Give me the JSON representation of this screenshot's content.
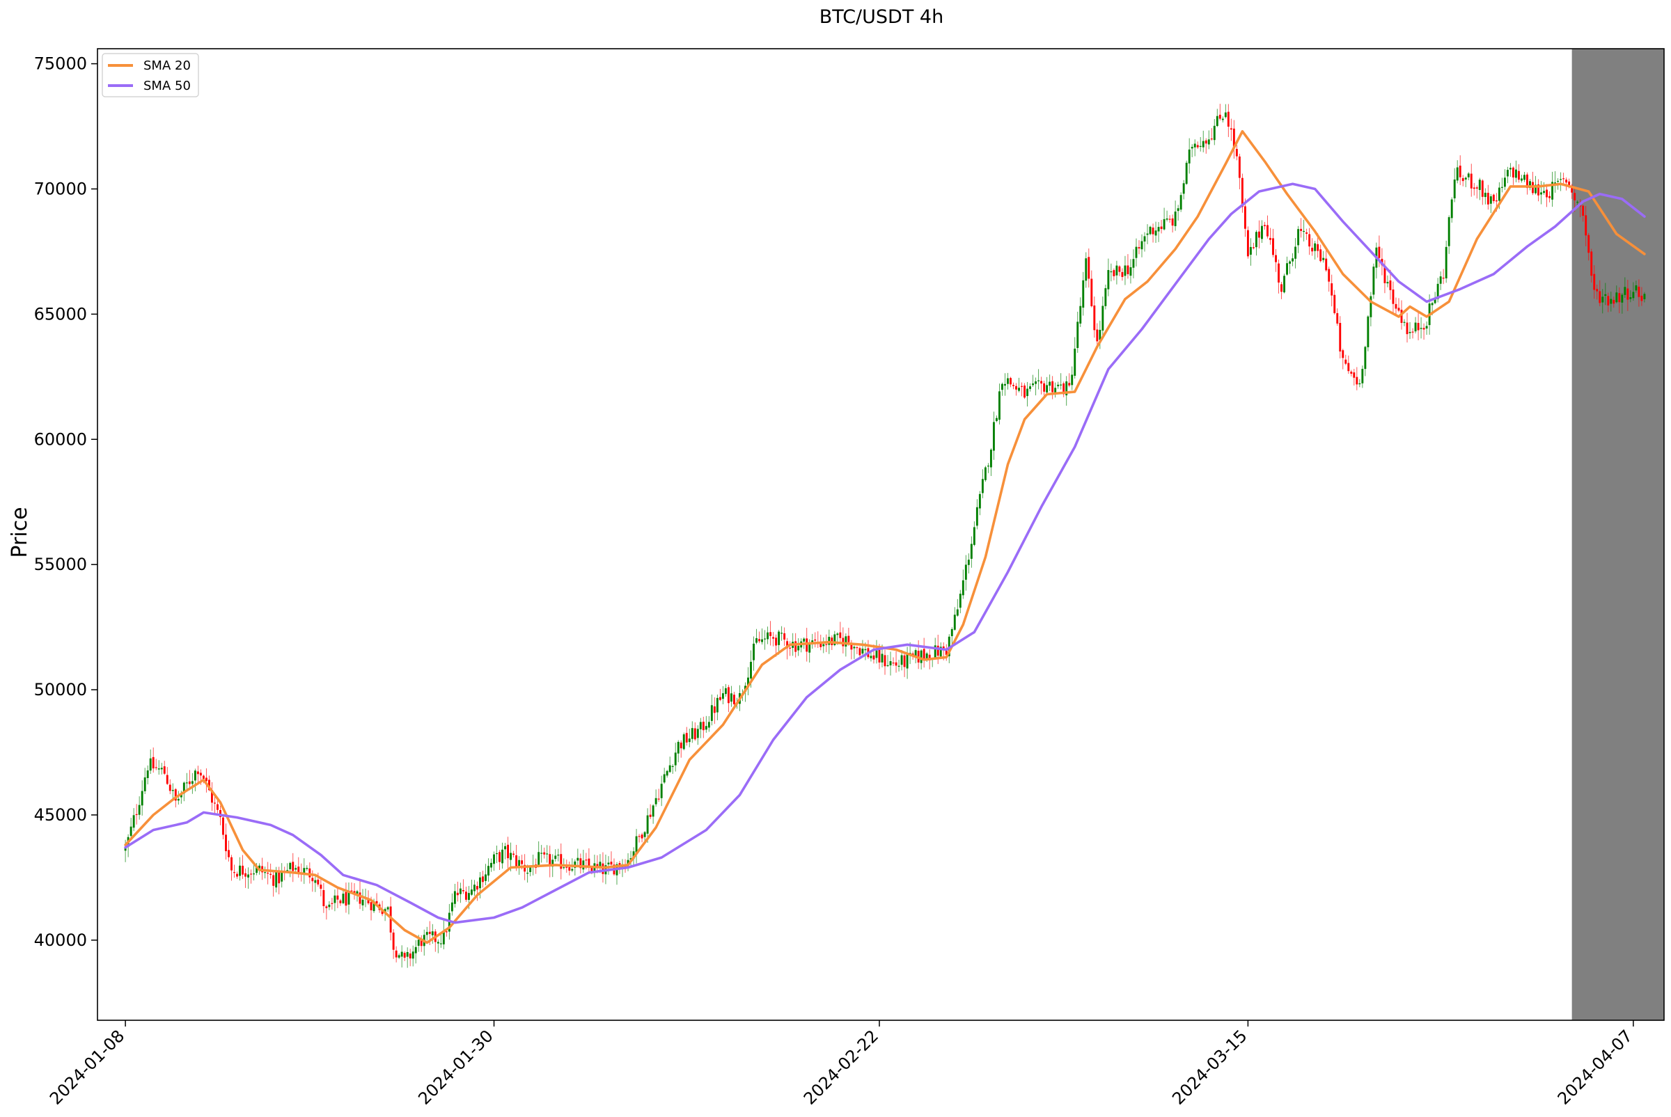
{
  "chart_data": {
    "type": "candlestick",
    "title": "BTC/USDT 4h",
    "ylabel": "Price",
    "xlabel": "",
    "ylim": [
      36800,
      75600
    ],
    "yticks": [
      40000,
      45000,
      50000,
      55000,
      60000,
      65000,
      70000,
      75000
    ],
    "xticks": [
      "2024-01-08",
      "2024-01-30",
      "2024-02-22",
      "2024-03-15",
      "2024-04-07"
    ],
    "x_range": {
      "start": "2024-01-06T08:00",
      "end": "2024-04-08T20:00"
    },
    "shaded_region": {
      "start": "2024-04-03T08:00",
      "end": "2024-04-08T20:00",
      "color": "#808080"
    },
    "legend": {
      "placement": "top-left"
    },
    "up_color": "#008000",
    "down_color": "#ff0000",
    "sma_anchors": [
      {
        "name": "SMA 20",
        "color": "#f7903a",
        "points": [
          [
            "2024-01-08T00:00",
            43800
          ],
          [
            "2024-01-09T16:00",
            45000
          ],
          [
            "2024-01-11T00:00",
            45700
          ],
          [
            "2024-01-12T16:00",
            46400
          ],
          [
            "2024-01-13T16:00",
            45500
          ],
          [
            "2024-01-15T00:00",
            43600
          ],
          [
            "2024-01-16T00:00",
            42800
          ],
          [
            "2024-01-18T00:00",
            42700
          ],
          [
            "2024-01-19T08:00",
            42600
          ],
          [
            "2024-01-20T16:00",
            42100
          ],
          [
            "2024-01-22T16:00",
            41600
          ],
          [
            "2024-01-24T16:00",
            40400
          ],
          [
            "2024-01-26T00:00",
            39900
          ],
          [
            "2024-01-27T08:00",
            40500
          ],
          [
            "2024-01-29T00:00",
            41800
          ],
          [
            "2024-01-31T00:00",
            42900
          ],
          [
            "2024-02-02T16:00",
            43000
          ],
          [
            "2024-02-05T16:00",
            42900
          ],
          [
            "2024-02-07T00:00",
            43000
          ],
          [
            "2024-02-08T16:00",
            44500
          ],
          [
            "2024-02-10T16:00",
            47200
          ],
          [
            "2024-02-12T16:00",
            48600
          ],
          [
            "2024-02-15T00:00",
            51000
          ],
          [
            "2024-02-16T16:00",
            51800
          ],
          [
            "2024-02-19T00:00",
            51900
          ],
          [
            "2024-02-21T00:00",
            51800
          ],
          [
            "2024-02-23T00:00",
            51600
          ],
          [
            "2024-02-24T16:00",
            51200
          ],
          [
            "2024-02-26T00:00",
            51300
          ],
          [
            "2024-02-27T00:00",
            52600
          ],
          [
            "2024-02-28T08:00",
            55300
          ],
          [
            "2024-02-29T16:00",
            59000
          ],
          [
            "2024-03-01T16:00",
            60800
          ],
          [
            "2024-03-03T00:00",
            61800
          ],
          [
            "2024-03-04T16:00",
            61900
          ],
          [
            "2024-03-06T00:00",
            63700
          ],
          [
            "2024-03-07T16:00",
            65600
          ],
          [
            "2024-03-09T00:00",
            66300
          ],
          [
            "2024-03-10T16:00",
            67600
          ],
          [
            "2024-03-12T00:00",
            68900
          ],
          [
            "2024-03-13T16:00",
            71000
          ],
          [
            "2024-03-14T16:00",
            72300
          ],
          [
            "2024-03-16T00:00",
            71100
          ],
          [
            "2024-03-17T08:00",
            69800
          ],
          [
            "2024-03-19T00:00",
            68300
          ],
          [
            "2024-03-20T16:00",
            66600
          ],
          [
            "2024-03-22T08:00",
            65500
          ],
          [
            "2024-03-24T00:00",
            64900
          ],
          [
            "2024-03-24T16:00",
            65300
          ],
          [
            "2024-03-25T16:00",
            64900
          ],
          [
            "2024-03-27T00:00",
            65500
          ],
          [
            "2024-03-28T16:00",
            68000
          ],
          [
            "2024-03-30T16:00",
            70100
          ],
          [
            "2024-04-01T08:00",
            70100
          ],
          [
            "2024-04-02T16:00",
            70200
          ],
          [
            "2024-04-04T08:00",
            69900
          ],
          [
            "2024-04-06T00:00",
            68200
          ],
          [
            "2024-04-07T16:00",
            67400
          ]
        ]
      },
      {
        "name": "SMA 50",
        "color": "#9a6cf7",
        "points": [
          [
            "2024-01-08T00:00",
            43700
          ],
          [
            "2024-01-09T16:00",
            44400
          ],
          [
            "2024-01-11T16:00",
            44700
          ],
          [
            "2024-01-12T16:00",
            45100
          ],
          [
            "2024-01-14T16:00",
            44900
          ],
          [
            "2024-01-16T16:00",
            44600
          ],
          [
            "2024-01-18T00:00",
            44200
          ],
          [
            "2024-01-19T16:00",
            43400
          ],
          [
            "2024-01-21T00:00",
            42600
          ],
          [
            "2024-01-23T00:00",
            42200
          ],
          [
            "2024-01-25T00:00",
            41500
          ],
          [
            "2024-01-26T16:00",
            40900
          ],
          [
            "2024-01-27T16:00",
            40700
          ],
          [
            "2024-01-30T00:00",
            40900
          ],
          [
            "2024-01-31T16:00",
            41300
          ],
          [
            "2024-02-02T16:00",
            42000
          ],
          [
            "2024-02-04T16:00",
            42700
          ],
          [
            "2024-02-07T00:00",
            42900
          ],
          [
            "2024-02-09T00:00",
            43300
          ],
          [
            "2024-02-11T16:00",
            44400
          ],
          [
            "2024-02-13T16:00",
            45800
          ],
          [
            "2024-02-15T16:00",
            48000
          ],
          [
            "2024-02-17T16:00",
            49700
          ],
          [
            "2024-02-19T16:00",
            50800
          ],
          [
            "2024-02-21T16:00",
            51600
          ],
          [
            "2024-02-23T16:00",
            51800
          ],
          [
            "2024-02-26T00:00",
            51600
          ],
          [
            "2024-02-27T16:00",
            52300
          ],
          [
            "2024-02-29T16:00",
            54700
          ],
          [
            "2024-03-02T16:00",
            57300
          ],
          [
            "2024-03-04T16:00",
            59700
          ],
          [
            "2024-03-06T16:00",
            62800
          ],
          [
            "2024-03-08T16:00",
            64400
          ],
          [
            "2024-03-10T16:00",
            66200
          ],
          [
            "2024-03-12T16:00",
            68000
          ],
          [
            "2024-03-14T00:00",
            69000
          ],
          [
            "2024-03-15T16:00",
            69900
          ],
          [
            "2024-03-17T16:00",
            70200
          ],
          [
            "2024-03-19T00:00",
            70000
          ],
          [
            "2024-03-20T16:00",
            68700
          ],
          [
            "2024-03-22T08:00",
            67500
          ],
          [
            "2024-03-24T00:00",
            66300
          ],
          [
            "2024-03-25T16:00",
            65500
          ],
          [
            "2024-03-27T16:00",
            66000
          ],
          [
            "2024-03-29T16:00",
            66600
          ],
          [
            "2024-03-31T16:00",
            67700
          ],
          [
            "2024-04-02T08:00",
            68500
          ],
          [
            "2024-04-04T00:00",
            69500
          ],
          [
            "2024-04-05T00:00",
            69800
          ],
          [
            "2024-04-06T08:00",
            69600
          ],
          [
            "2024-04-07T16:00",
            68900
          ]
        ]
      }
    ],
    "close_anchors": [
      [
        "2024-01-08T00:00",
        43600
      ],
      [
        "2024-01-08T16:00",
        45200
      ],
      [
        "2024-01-09T08:00",
        47000
      ],
      [
        "2024-01-10T08:00",
        46700
      ],
      [
        "2024-01-11T00:00",
        45500
      ],
      [
        "2024-01-11T16:00",
        46200
      ],
      [
        "2024-01-12T08:00",
        46900
      ],
      [
        "2024-01-12T16:00",
        46500
      ],
      [
        "2024-01-13T16:00",
        44800
      ],
      [
        "2024-01-14T08:00",
        42800
      ],
      [
        "2024-01-16T00:00",
        42800
      ],
      [
        "2024-01-17T00:00",
        42400
      ],
      [
        "2024-01-18T00:00",
        42900
      ],
      [
        "2024-01-19T08:00",
        42600
      ],
      [
        "2024-01-20T00:00",
        41100
      ],
      [
        "2024-01-20T16:00",
        41600
      ],
      [
        "2024-01-22T00:00",
        41700
      ],
      [
        "2024-01-23T16:00",
        41200
      ],
      [
        "2024-01-24T00:00",
        39800
      ],
      [
        "2024-01-24T16:00",
        39100
      ],
      [
        "2024-01-25T16:00",
        40000
      ],
      [
        "2024-01-27T00:00",
        40100
      ],
      [
        "2024-01-27T16:00",
        41800
      ],
      [
        "2024-01-28T16:00",
        42000
      ],
      [
        "2024-01-30T00:00",
        43200
      ],
      [
        "2024-01-30T16:00",
        43500
      ],
      [
        "2024-02-01T00:00",
        42800
      ],
      [
        "2024-02-01T16:00",
        43200
      ],
      [
        "2024-02-04T00:00",
        43000
      ],
      [
        "2024-02-05T16:00",
        42800
      ],
      [
        "2024-02-07T00:00",
        43200
      ],
      [
        "2024-02-08T00:00",
        44600
      ],
      [
        "2024-02-09T00:00",
        46200
      ],
      [
        "2024-02-10T00:00",
        47800
      ],
      [
        "2024-02-11T08:00",
        48400
      ],
      [
        "2024-02-12T16:00",
        49800
      ],
      [
        "2024-02-13T16:00",
        49700
      ],
      [
        "2024-02-14T16:00",
        51900
      ],
      [
        "2024-02-15T16:00",
        52100
      ],
      [
        "2024-02-17T00:00",
        51800
      ],
      [
        "2024-02-18T16:00",
        51900
      ],
      [
        "2024-02-20T00:00",
        52000
      ],
      [
        "2024-02-21T16:00",
        51300
      ],
      [
        "2024-02-23T00:00",
        51000
      ],
      [
        "2024-02-24T16:00",
        51400
      ],
      [
        "2024-02-26T00:00",
        51600
      ],
      [
        "2024-02-26T16:00",
        53200
      ],
      [
        "2024-02-27T16:00",
        56500
      ],
      [
        "2024-02-28T16:00",
        59800
      ],
      [
        "2024-02-29T08:00",
        62500
      ],
      [
        "2024-03-01T16:00",
        61800
      ],
      [
        "2024-03-03T00:00",
        62200
      ],
      [
        "2024-03-04T08:00",
        62000
      ],
      [
        "2024-03-05T08:00",
        67000
      ],
      [
        "2024-03-06T00:00",
        63800
      ],
      [
        "2024-03-06T16:00",
        66500
      ],
      [
        "2024-03-08T00:00",
        66900
      ],
      [
        "2024-03-09T00:00",
        68300
      ],
      [
        "2024-03-10T16:00",
        68800
      ],
      [
        "2024-03-11T16:00",
        71800
      ],
      [
        "2024-03-12T16:00",
        72100
      ],
      [
        "2024-03-13T16:00",
        73200
      ],
      [
        "2024-03-14T08:00",
        71200
      ],
      [
        "2024-03-15T00:00",
        67200
      ],
      [
        "2024-03-16T00:00",
        68800
      ],
      [
        "2024-03-17T00:00",
        66000
      ],
      [
        "2024-03-18T00:00",
        68300
      ],
      [
        "2024-03-19T16:00",
        67000
      ],
      [
        "2024-03-20T16:00",
        63000
      ],
      [
        "2024-03-21T16:00",
        62200
      ],
      [
        "2024-03-22T16:00",
        67500
      ],
      [
        "2024-03-23T16:00",
        65600
      ],
      [
        "2024-03-24T16:00",
        64200
      ],
      [
        "2024-03-25T16:00",
        64800
      ],
      [
        "2024-03-26T16:00",
        66700
      ],
      [
        "2024-03-27T08:00",
        70600
      ],
      [
        "2024-03-28T16:00",
        70200
      ],
      [
        "2024-03-29T16:00",
        69300
      ],
      [
        "2024-03-30T16:00",
        70800
      ],
      [
        "2024-04-01T00:00",
        70000
      ],
      [
        "2024-04-02T00:00",
        69900
      ],
      [
        "2024-04-03T00:00",
        70400
      ],
      [
        "2024-04-04T00:00",
        69000
      ],
      [
        "2024-04-04T16:00",
        65800
      ],
      [
        "2024-04-05T16:00",
        65600
      ],
      [
        "2024-04-07T00:00",
        66000
      ],
      [
        "2024-04-07T16:00",
        65700
      ]
    ]
  }
}
